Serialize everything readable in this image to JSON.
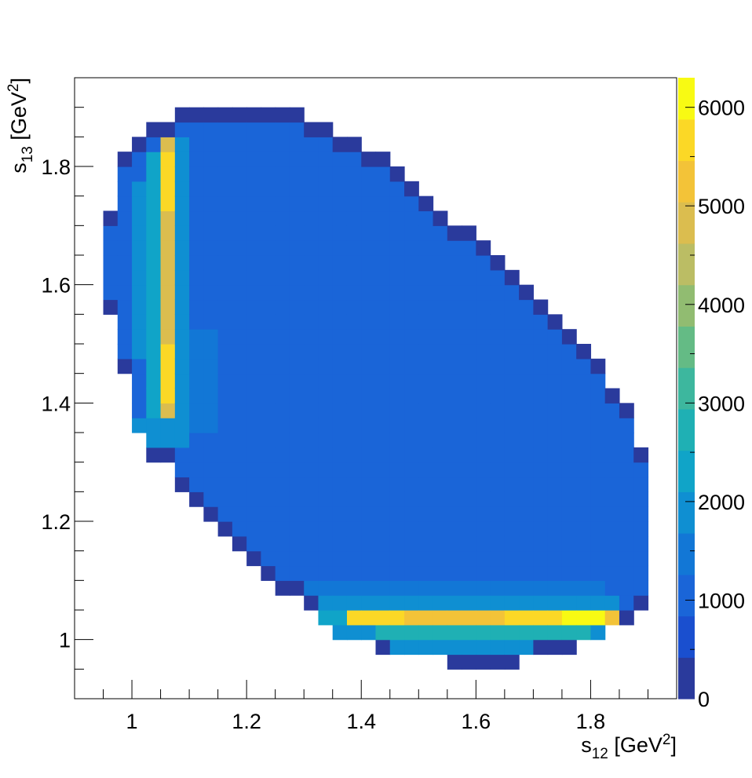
{
  "chart_data": {
    "type": "heatmap",
    "title": "",
    "xlabel": {
      "base": "s",
      "sub": "12",
      "unit_pre": " [GeV",
      "unit_sup": "2",
      "unit_post": "]"
    },
    "ylabel": {
      "base": "s",
      "sub": "13",
      "unit_pre": " [GeV",
      "unit_sup": "2",
      "unit_post": "]"
    },
    "xlim": [
      0.9,
      1.95
    ],
    "ylim": [
      0.9,
      1.95
    ],
    "zlim": [
      0,
      6300
    ],
    "x_ticks": [
      1,
      1.2,
      1.4,
      1.6,
      1.8
    ],
    "x_tick_labels": [
      "1",
      "1.2",
      "1.4",
      "1.6",
      "1.8"
    ],
    "y_ticks": [
      1,
      1.2,
      1.4,
      1.6,
      1.8
    ],
    "y_tick_labels": [
      "1",
      "1.2",
      "1.4",
      "1.6",
      "1.8"
    ],
    "z_ticks": [
      0,
      1000,
      2000,
      3000,
      4000,
      5000,
      6000
    ],
    "z_tick_labels": [
      "0",
      "1000",
      "2000",
      "3000",
      "4000",
      "5000",
      "6000"
    ],
    "palette": [
      "#2a3a9c",
      "#1a4fcf",
      "#1a65d8",
      "#1277d6",
      "#0f8fd2",
      "#10a4c8",
      "#1fb0b4",
      "#3db79e",
      "#64bb85",
      "#91bc71",
      "#bbbd64",
      "#dbbd4f",
      "#f3c338",
      "#fbd826",
      "#f8fa13"
    ],
    "binning": {
      "x_start": 0.9,
      "y_start": 0.9,
      "bin_width": 0.025
    },
    "grid": false,
    "legend": "colorbar-right",
    "region": {
      "columns": [
        {
          "x": 0.95,
          "y_from": 1.55,
          "y_to": 1.7
        },
        {
          "x": 0.975,
          "y_from": 1.45,
          "y_to": 1.8
        },
        {
          "x": 1.0,
          "y_from": 1.35,
          "y_to": 1.825
        },
        {
          "x": 1.025,
          "y_from": 1.3,
          "y_to": 1.85
        },
        {
          "x": 1.05,
          "y_from": 1.3,
          "y_to": 1.85
        },
        {
          "x": 1.075,
          "y_from": 1.25,
          "y_to": 1.875
        },
        {
          "x": 1.1,
          "y_from": 1.225,
          "y_to": 1.875
        },
        {
          "x": 1.125,
          "y_from": 1.2,
          "y_to": 1.875
        },
        {
          "x": 1.15,
          "y_from": 1.175,
          "y_to": 1.875
        },
        {
          "x": 1.175,
          "y_from": 1.15,
          "y_to": 1.875
        },
        {
          "x": 1.2,
          "y_from": 1.125,
          "y_to": 1.875
        },
        {
          "x": 1.225,
          "y_from": 1.1,
          "y_to": 1.875
        },
        {
          "x": 1.25,
          "y_from": 1.075,
          "y_to": 1.875
        },
        {
          "x": 1.275,
          "y_from": 1.075,
          "y_to": 1.875
        },
        {
          "x": 1.3,
          "y_from": 1.05,
          "y_to": 1.85
        },
        {
          "x": 1.325,
          "y_from": 1.025,
          "y_to": 1.85
        },
        {
          "x": 1.35,
          "y_from": 1.0,
          "y_to": 1.825
        },
        {
          "x": 1.375,
          "y_from": 1.0,
          "y_to": 1.825
        },
        {
          "x": 1.4,
          "y_from": 1.0,
          "y_to": 1.8
        },
        {
          "x": 1.425,
          "y_from": 0.975,
          "y_to": 1.8
        },
        {
          "x": 1.45,
          "y_from": 0.975,
          "y_to": 1.775
        },
        {
          "x": 1.475,
          "y_from": 0.975,
          "y_to": 1.75
        },
        {
          "x": 1.5,
          "y_from": 0.975,
          "y_to": 1.725
        },
        {
          "x": 1.525,
          "y_from": 0.975,
          "y_to": 1.7
        },
        {
          "x": 1.55,
          "y_from": 0.95,
          "y_to": 1.675
        },
        {
          "x": 1.575,
          "y_from": 0.95,
          "y_to": 1.675
        },
        {
          "x": 1.6,
          "y_from": 0.95,
          "y_to": 1.65
        },
        {
          "x": 1.625,
          "y_from": 0.95,
          "y_to": 1.625
        },
        {
          "x": 1.65,
          "y_from": 0.95,
          "y_to": 1.6
        },
        {
          "x": 1.675,
          "y_from": 0.975,
          "y_to": 1.575
        },
        {
          "x": 1.7,
          "y_from": 0.975,
          "y_to": 1.55
        },
        {
          "x": 1.725,
          "y_from": 0.975,
          "y_to": 1.525
        },
        {
          "x": 1.75,
          "y_from": 0.975,
          "y_to": 1.5
        },
        {
          "x": 1.775,
          "y_from": 1.0,
          "y_to": 1.475
        },
        {
          "x": 1.8,
          "y_from": 1.0,
          "y_to": 1.45
        },
        {
          "x": 1.825,
          "y_from": 1.025,
          "y_to": 1.4
        },
        {
          "x": 1.85,
          "y_from": 1.025,
          "y_to": 1.375
        },
        {
          "x": 1.875,
          "y_from": 1.05,
          "y_to": 1.3
        }
      ]
    },
    "overrides": [
      {
        "x_from": 1.35,
        "x_to": 1.825,
        "y": 1.025,
        "value": 5200
      },
      {
        "x_from": 1.375,
        "x_to": 1.45,
        "y": 1.025,
        "value": 5600
      },
      {
        "x_from": 1.65,
        "x_to": 1.725,
        "y": 1.025,
        "value": 5700
      },
      {
        "x_from": 1.75,
        "x_to": 1.8,
        "y": 1.025,
        "value": 6200
      },
      {
        "x_from": 1.325,
        "x_to": 1.35,
        "y": 1.025,
        "value": 2200
      },
      {
        "x_from": 1.35,
        "x_to": 1.775,
        "y": 1.0,
        "value": 2800
      },
      {
        "x_from": 1.35,
        "x_to": 1.4,
        "y": 1.0,
        "value": 1700
      },
      {
        "x_from": 1.8,
        "x_to": 1.8,
        "y": 1.0,
        "value": 2000
      },
      {
        "x_from": 1.45,
        "x_to": 1.675,
        "y": 0.975,
        "value": 1900
      },
      {
        "x_from": 1.325,
        "x_to": 1.825,
        "y": 1.05,
        "value": 1850
      },
      {
        "x_from": 1.3,
        "x_to": 1.8,
        "y": 1.075,
        "value": 1650
      },
      {
        "x_from": 1.025,
        "x_to": 1.025,
        "y_from": 1.35,
        "y_to": 1.8,
        "value": 2400
      },
      {
        "x_from": 1.05,
        "x_to": 1.05,
        "y_from": 1.375,
        "y_to": 1.825,
        "value": 5000
      },
      {
        "x_from": 1.05,
        "x_to": 1.05,
        "y_from": 1.4,
        "y_to": 1.475,
        "value": 5600
      },
      {
        "x_from": 1.05,
        "x_to": 1.05,
        "y_from": 1.725,
        "y_to": 1.8,
        "value": 5800
      },
      {
        "x_from": 1.075,
        "x_to": 1.075,
        "y_from": 1.325,
        "y_to": 1.825,
        "value": 1800
      },
      {
        "x_from": 1.0,
        "x_to": 1.0,
        "y_from": 1.475,
        "y_to": 1.75,
        "value": 1700
      },
      {
        "x_from": 1.1,
        "x_to": 1.125,
        "y_from": 1.35,
        "y_to": 1.5,
        "value": 1400
      },
      {
        "x_from": 1.0,
        "x_to": 1.05,
        "y_from": 1.325,
        "y_to": 1.35,
        "value": 1900
      }
    ],
    "base_value": 1200,
    "edge_value": 200
  },
  "colors": {
    "frame": "#000000",
    "background": "#ffffff"
  }
}
